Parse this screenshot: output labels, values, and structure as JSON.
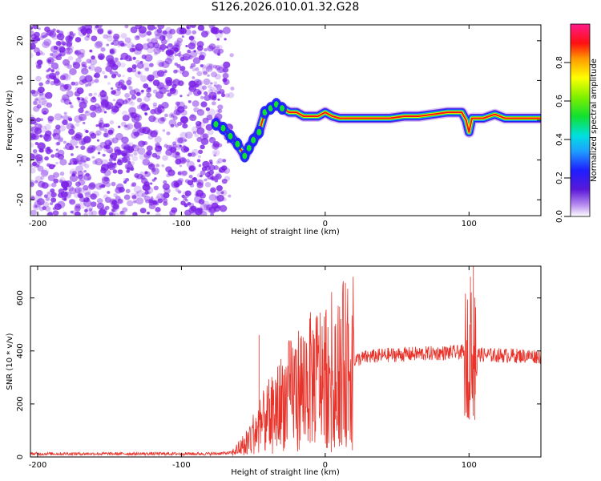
{
  "title": "S126.2026.010.01.32.G28",
  "colors": {
    "snr_line": "#e8332a",
    "axis": "#000000",
    "scatter": "#7a1fe6"
  },
  "chart_data": [
    {
      "type": "heatmap",
      "name": "spectrogram",
      "xlabel": "Height of straight line (km)",
      "ylabel": "Frequency (Hz)",
      "xlim": [
        -205,
        150
      ],
      "ylim": [
        -24,
        24
      ],
      "xticks": [
        -200,
        -100,
        0,
        100
      ],
      "yticks": [
        -20,
        -10,
        0,
        10,
        20
      ],
      "colorbar": {
        "label": "Normalized spectral amplitude",
        "range": [
          0,
          1
        ],
        "ticks": [
          "0.0",
          "0.2",
          "0.4",
          "0.6",
          "0.8"
        ],
        "tick_values": [
          0.0,
          0.2,
          0.4,
          0.6,
          0.8
        ]
      },
      "noise_region_x": [
        -205,
        -68
      ],
      "tone_track": [
        {
          "x": -76,
          "y": -1
        },
        {
          "x": -71,
          "y": -2
        },
        {
          "x": -66,
          "y": -4
        },
        {
          "x": -61,
          "y": -6
        },
        {
          "x": -56,
          "y": -9
        },
        {
          "x": -53,
          "y": -7
        },
        {
          "x": -50,
          "y": -5
        },
        {
          "x": -46,
          "y": -3
        },
        {
          "x": -42,
          "y": 2
        },
        {
          "x": -38,
          "y": 3
        },
        {
          "x": -34,
          "y": 4
        },
        {
          "x": -30,
          "y": 3
        },
        {
          "x": -25,
          "y": 2
        },
        {
          "x": -20,
          "y": 2
        },
        {
          "x": -15,
          "y": 1
        },
        {
          "x": -10,
          "y": 1
        },
        {
          "x": -5,
          "y": 1
        },
        {
          "x": 0,
          "y": 2
        },
        {
          "x": 5,
          "y": 1
        },
        {
          "x": 10,
          "y": 0.5
        },
        {
          "x": 20,
          "y": 0.5
        },
        {
          "x": 30,
          "y": 0.5
        },
        {
          "x": 45,
          "y": 0.5
        },
        {
          "x": 55,
          "y": 1
        },
        {
          "x": 65,
          "y": 1
        },
        {
          "x": 75,
          "y": 1.5
        },
        {
          "x": 85,
          "y": 2
        },
        {
          "x": 95,
          "y": 2
        },
        {
          "x": 98,
          "y": 0
        },
        {
          "x": 100,
          "y": -3
        },
        {
          "x": 102,
          "y": 0.5
        },
        {
          "x": 110,
          "y": 0.5
        },
        {
          "x": 118,
          "y": 1.5
        },
        {
          "x": 125,
          "y": 0.5
        },
        {
          "x": 140,
          "y": 0.5
        },
        {
          "x": 150,
          "y": 0.5
        }
      ]
    },
    {
      "type": "line",
      "name": "snr",
      "xlabel": "Height of straight line (km)",
      "ylabel": "SNR (10 * v/v)",
      "xlim": [
        -205,
        150
      ],
      "ylim": [
        0,
        720
      ],
      "xticks": [
        -200,
        -100,
        0,
        100
      ],
      "yticks": [
        0,
        200,
        400,
        600
      ],
      "envelope": [
        {
          "x": -205,
          "y": 12
        },
        {
          "x": -80,
          "y": 12
        },
        {
          "x": -65,
          "y": 15
        },
        {
          "x": -58,
          "y": 40
        },
        {
          "x": -50,
          "y": 90
        },
        {
          "x": -40,
          "y": 150
        },
        {
          "x": -30,
          "y": 210
        },
        {
          "x": -20,
          "y": 260
        },
        {
          "x": -10,
          "y": 290
        },
        {
          "x": 0,
          "y": 320
        },
        {
          "x": 10,
          "y": 345
        },
        {
          "x": 20,
          "y": 365
        },
        {
          "x": 30,
          "y": 378
        },
        {
          "x": 45,
          "y": 385
        },
        {
          "x": 60,
          "y": 388
        },
        {
          "x": 80,
          "y": 392
        },
        {
          "x": 95,
          "y": 395
        },
        {
          "x": 110,
          "y": 385
        },
        {
          "x": 150,
          "y": 380
        }
      ],
      "spikes": [
        {
          "x": -46,
          "y": 460
        },
        {
          "x": 101,
          "y": 680
        },
        {
          "x": 103,
          "y": 720
        },
        {
          "x": 104,
          "y": 140
        },
        {
          "x": 102,
          "y": 240
        }
      ]
    }
  ]
}
